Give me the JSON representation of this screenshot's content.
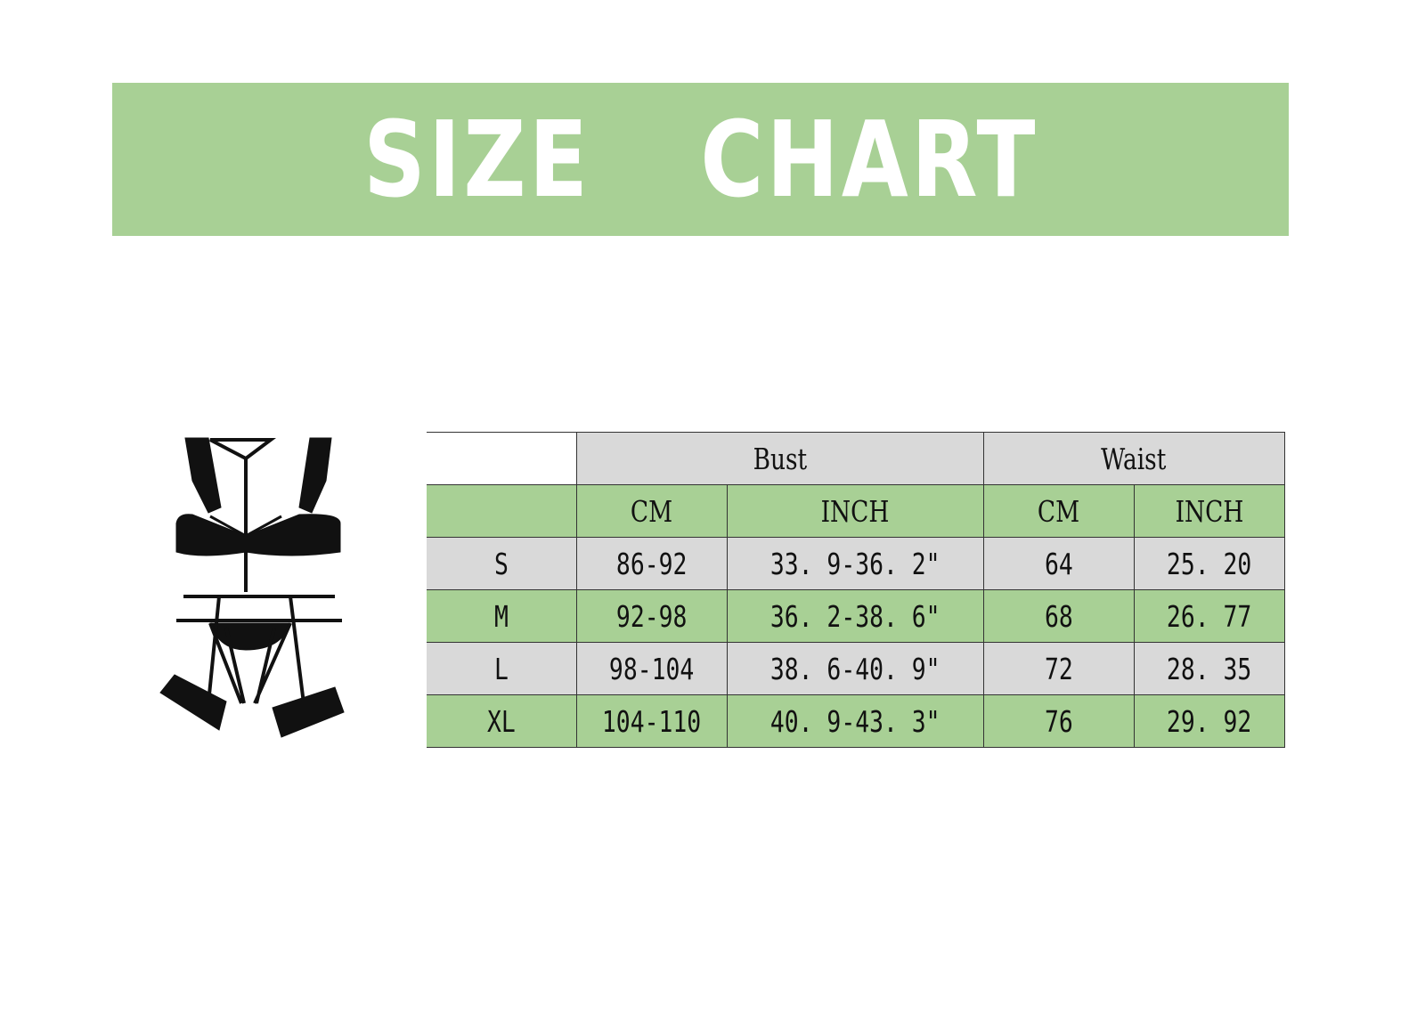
{
  "banner": {
    "title": "SIZE  CHART",
    "color": "#a8d095"
  },
  "table": {
    "group_headers": [
      "Bust",
      "Waist"
    ],
    "sub_headers": [
      "CM",
      "INCH",
      "CM",
      "INCH"
    ],
    "rows": [
      {
        "size": "S",
        "bust_cm": "86-92",
        "bust_inch": "33. 9-36. 2\"",
        "waist_cm": "64",
        "waist_inch": "25. 20"
      },
      {
        "size": "M",
        "bust_cm": "92-98",
        "bust_inch": "36. 2-38. 6\"",
        "waist_cm": "68",
        "waist_inch": "26. 77"
      },
      {
        "size": "L",
        "bust_cm": "98-104",
        "bust_inch": "38. 6-40. 9\"",
        "waist_cm": "72",
        "waist_inch": "28. 35"
      },
      {
        "size": "XL",
        "bust_cm": "104-110",
        "bust_inch": "40. 9-43. 3\"",
        "waist_cm": "76",
        "waist_inch": "29. 92"
      }
    ],
    "colors": {
      "gray": "#d9d9d9",
      "green": "#a8d095"
    }
  }
}
